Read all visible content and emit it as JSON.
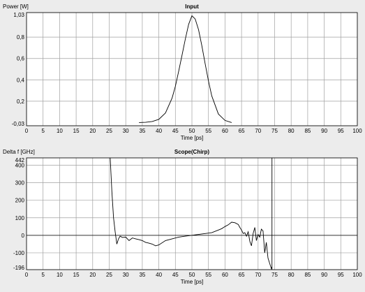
{
  "chart_data": [
    {
      "type": "line",
      "title": "Input",
      "ylabel": "Power [W]",
      "xlabel": "Time [ps]",
      "xlim": [
        0,
        100
      ],
      "ylim": [
        -0.03,
        1.03
      ],
      "grid": true,
      "x_ticks": [
        0,
        5,
        10,
        15,
        20,
        25,
        30,
        35,
        40,
        45,
        50,
        55,
        60,
        65,
        70,
        75,
        80,
        85,
        90,
        95,
        100
      ],
      "y_ticks": [
        {
          "v": 1.03,
          "label": "1,03"
        },
        {
          "v": 0.8,
          "label": "0,8"
        },
        {
          "v": 0.6,
          "label": "0,6"
        },
        {
          "v": 0.4,
          "label": "0,4"
        },
        {
          "v": 0.2,
          "label": "0,2"
        },
        {
          "v": -0.03,
          "label": "-0,03"
        }
      ],
      "series": [
        {
          "color": "#000000",
          "x": [
            34,
            36,
            38,
            40,
            42,
            44,
            45,
            46,
            47,
            48,
            49,
            50,
            51,
            52,
            53,
            54,
            55,
            56,
            58,
            60,
            62
          ],
          "y": [
            0,
            0.002,
            0.01,
            0.03,
            0.09,
            0.23,
            0.34,
            0.48,
            0.63,
            0.78,
            0.92,
            1.0,
            0.97,
            0.87,
            0.72,
            0.55,
            0.39,
            0.25,
            0.08,
            0.02,
            0
          ]
        }
      ]
    },
    {
      "type": "line",
      "title": "Scope(Chirp)",
      "ylabel": "Delta f [GHz]",
      "xlabel": "Time [ps]",
      "xlim": [
        0,
        100
      ],
      "ylim": [
        -196,
        442
      ],
      "grid": true,
      "x_ticks": [
        0,
        5,
        10,
        15,
        20,
        25,
        30,
        35,
        40,
        45,
        50,
        55,
        60,
        65,
        70,
        75,
        80,
        85,
        90,
        95,
        100
      ],
      "y_ticks": [
        {
          "v": 442,
          "label": "442"
        },
        {
          "v": 400,
          "label": "400"
        },
        {
          "v": 300,
          "label": "300"
        },
        {
          "v": 200,
          "label": "200"
        },
        {
          "v": 100,
          "label": "100"
        },
        {
          "v": 0,
          "label": "0"
        },
        {
          "v": -100,
          "label": "-100"
        },
        {
          "v": -196,
          "label": "-196"
        }
      ],
      "series": [
        {
          "color": "#000000",
          "x": [
            25.3,
            25.8,
            26.3,
            26.8,
            27.3,
            27.8,
            28.3,
            29,
            30,
            31,
            32,
            33,
            34,
            35,
            36,
            37,
            38,
            39,
            40,
            42,
            44,
            46,
            48,
            50,
            52,
            54,
            56,
            58,
            59,
            60,
            61,
            62,
            63,
            64,
            64.5,
            65,
            65.5,
            66,
            66.5,
            67,
            67.5,
            68,
            68.5,
            69,
            69.5,
            70,
            70.5,
            71,
            71.5,
            72,
            72.5,
            73,
            73.5,
            74,
            74.2
          ],
          "y": [
            442,
            250,
            100,
            20,
            -50,
            -20,
            -5,
            -12,
            -10,
            -30,
            -15,
            -20,
            -25,
            -30,
            -40,
            -45,
            -50,
            -60,
            -55,
            -30,
            -20,
            -10,
            -5,
            0,
            5,
            10,
            15,
            30,
            38,
            50,
            60,
            75,
            72,
            62,
            45,
            30,
            10,
            15,
            -5,
            20,
            -35,
            -60,
            10,
            45,
            -30,
            5,
            -10,
            35,
            25,
            -100,
            -40,
            -130,
            -160,
            -190,
            -180
          ]
        }
      ],
      "vertical_line": {
        "x": 74.2,
        "color": "#000000"
      }
    }
  ]
}
